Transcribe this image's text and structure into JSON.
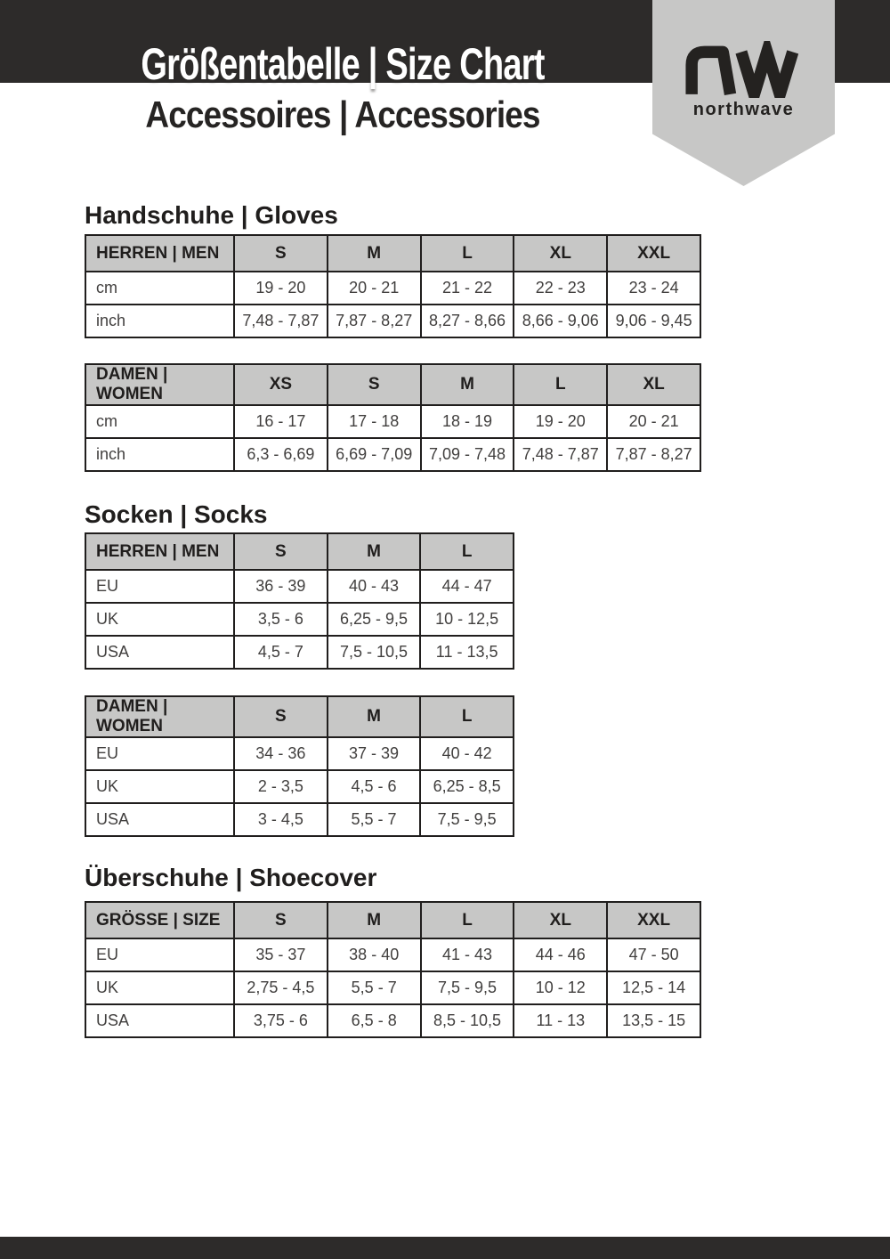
{
  "header": {
    "title": "Größentabelle | Size Chart",
    "subtitle": "Accessoires | Accessories",
    "brand": {
      "logo_icon": "northwave-nw-logo",
      "wordmark": "northwave"
    }
  },
  "colors": {
    "bar_dark": "#2d2b2a",
    "pennant_gray": "#c7c7c6",
    "table_header_gray": "#c7c7c6",
    "border_dark": "#201e1d",
    "data_text": "#413f3e",
    "title_white": "#ffffff"
  },
  "sections": [
    {
      "heading": "Handschuhe | Gloves",
      "tables": [
        {
          "header": [
            "HERREN | MEN",
            "S",
            "M",
            "L",
            "XL",
            "XXL"
          ],
          "rows": [
            [
              "cm",
              "19 - 20",
              "20 - 21",
              "21 - 22",
              "22 - 23",
              "23 - 24"
            ],
            [
              "inch",
              "7,48 - 7,87",
              "7,87 - 8,27",
              "8,27 - 8,66",
              "8,66 - 9,06",
              "9,06 - 9,45"
            ]
          ]
        },
        {
          "header": [
            "DAMEN | WOMEN",
            "XS",
            "S",
            "M",
            "L",
            "XL"
          ],
          "rows": [
            [
              "cm",
              "16 - 17",
              "17 - 18",
              "18 - 19",
              "19 - 20",
              "20 - 21"
            ],
            [
              "inch",
              "6,3 - 6,69",
              "6,69 - 7,09",
              "7,09 - 7,48",
              "7,48 - 7,87",
              "7,87 - 8,27"
            ]
          ]
        }
      ]
    },
    {
      "heading": "Socken | Socks",
      "tables": [
        {
          "header": [
            "HERREN | MEN",
            "S",
            "M",
            "L"
          ],
          "rows": [
            [
              "EU",
              "36 - 39",
              "40 - 43",
              "44 - 47"
            ],
            [
              "UK",
              "3,5 - 6",
              "6,25 - 9,5",
              "10 - 12,5"
            ],
            [
              "USA",
              "4,5 - 7",
              "7,5 - 10,5",
              "11 - 13,5"
            ]
          ]
        },
        {
          "header": [
            "DAMEN | WOMEN",
            "S",
            "M",
            "L"
          ],
          "rows": [
            [
              "EU",
              "34 - 36",
              "37 - 39",
              "40 - 42"
            ],
            [
              "UK",
              "2 - 3,5",
              "4,5 - 6",
              "6,25 - 8,5"
            ],
            [
              "USA",
              "3 - 4,5",
              "5,5 - 7",
              "7,5 - 9,5"
            ]
          ]
        }
      ]
    },
    {
      "heading": "Überschuhe | Shoecover",
      "tables": [
        {
          "header": [
            "GRÖSSE | SIZE",
            "S",
            "M",
            "L",
            "XL",
            "XXL"
          ],
          "rows": [
            [
              "EU",
              "35 - 37",
              "38 - 40",
              "41 - 43",
              "44 - 46",
              "47 - 50"
            ],
            [
              "UK",
              "2,75 - 4,5",
              "5,5 - 7",
              "7,5 - 9,5",
              "10 - 12",
              "12,5 - 14"
            ],
            [
              "USA",
              "3,75 - 6",
              "6,5 - 8",
              "8,5 - 10,5",
              "11 - 13",
              "13,5 - 15"
            ]
          ]
        }
      ]
    }
  ]
}
